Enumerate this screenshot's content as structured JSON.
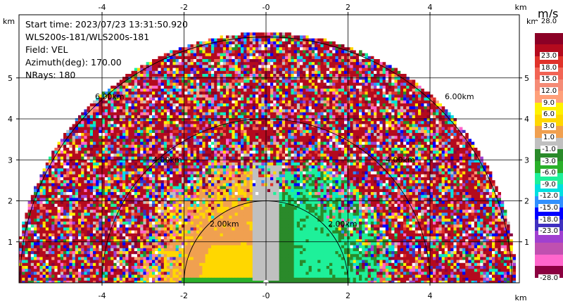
{
  "info": {
    "start_time": "Start time: 2023/07/23 13:31:50.920",
    "instrument": "WLS200s-181/WLS200s-181",
    "field": "Field: VEL",
    "azimuth": "Azimuth(deg): 170.00",
    "nrays": "NRays: 180"
  },
  "axes": {
    "x_ticks": [
      "-4",
      "-2",
      "-0",
      "2",
      "4"
    ],
    "y_ticks": [
      "1",
      "2",
      "3",
      "4",
      "5"
    ],
    "x_unit": "km",
    "y_unit": "km"
  },
  "range_rings": [
    "2.00km",
    "4.00km",
    "6.00km"
  ],
  "colorbar": {
    "unit": "m/s",
    "labels": [
      "28.0",
      "23.0",
      "18.0",
      "15.0",
      "12.0",
      "9.0",
      "6.0",
      "3.0",
      "1.0",
      "-1.0",
      "-3.0",
      "-6.0",
      "-9.0",
      "-12.0",
      "-15.0",
      "-18.0",
      "-23.0",
      "-28.0"
    ],
    "colors": [
      "#ffffff",
      "#8b0026",
      "#b40a1e",
      "#e0322a",
      "#f26454",
      "#f58b76",
      "#ffa07a",
      "#fff200",
      "#ffd700",
      "#f0a050",
      "#c0c0c0",
      "#2a8a2a",
      "#2ab02a",
      "#1ef09a",
      "#00e0e0",
      "#3090ff",
      "#0000ff",
      "#4030c0",
      "#a040d0",
      "#c050b0",
      "#ff66cc",
      "#8b0040"
    ]
  }
}
